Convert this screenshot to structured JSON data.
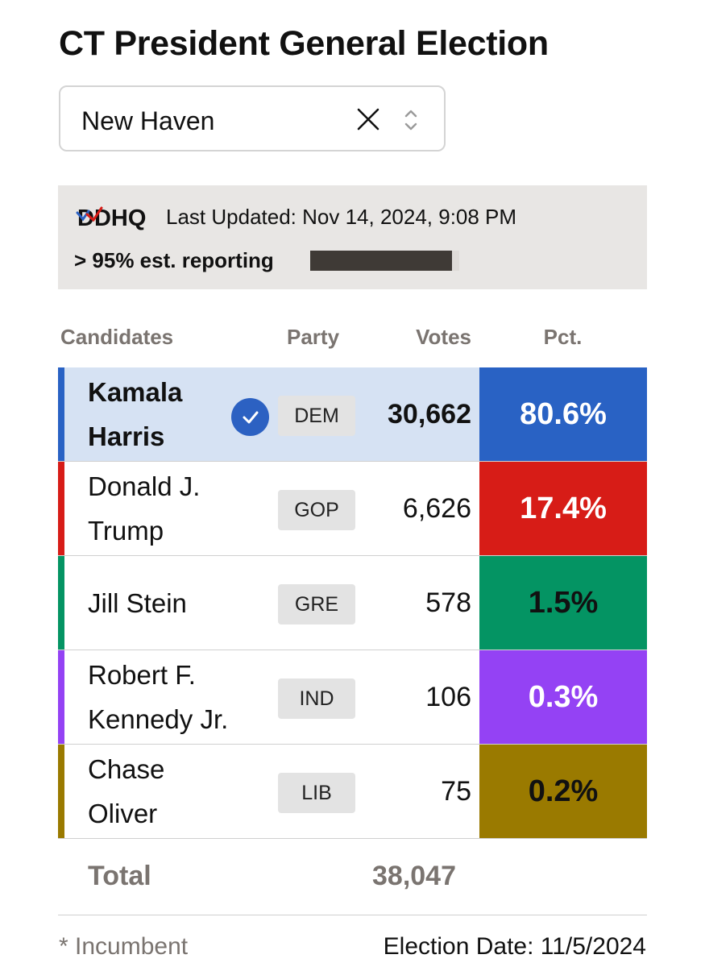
{
  "title": "CT President General Election",
  "location_select": {
    "value": "New Haven"
  },
  "info": {
    "logo_text": "DDHQ",
    "last_updated": "Last Updated: Nov 14, 2024, 9:08 PM",
    "reporting": "> 95% est. reporting",
    "reporting_progress": 0.95
  },
  "table": {
    "headers": {
      "candidates": "Candidates",
      "party": "Party",
      "votes": "Votes",
      "pct": "Pct."
    },
    "rows": [
      {
        "candidate": "Kamala Harris",
        "party": "DEM",
        "votes": "30,662",
        "pct": "80.6%",
        "color": "#2962c4",
        "pct_text_color": "#ffffff",
        "winner": true,
        "row_bg": "#d6e2f3"
      },
      {
        "candidate": "Donald J. Trump",
        "party": "GOP",
        "votes": "6,626",
        "pct": "17.4%",
        "color": "#d71c17",
        "pct_text_color": "#ffffff",
        "winner": false
      },
      {
        "candidate": "Jill Stein",
        "party": "GRE",
        "votes": "578",
        "pct": "1.5%",
        "color": "#049463",
        "pct_text_color": "#111111",
        "winner": false
      },
      {
        "candidate": "Robert F. Kennedy Jr.",
        "party": "IND",
        "votes": "106",
        "pct": "0.3%",
        "color": "#9442f4",
        "pct_text_color": "#ffffff",
        "winner": false
      },
      {
        "candidate": "Chase Oliver",
        "party": "LIB",
        "votes": "75",
        "pct": "0.2%",
        "color": "#9a7a00",
        "pct_text_color": "#111111",
        "winner": false
      }
    ],
    "total_label": "Total",
    "total_votes": "38,047"
  },
  "footer": {
    "incumbent_note": "* Incumbent",
    "election_date": "Election Date: 11/5/2024"
  }
}
